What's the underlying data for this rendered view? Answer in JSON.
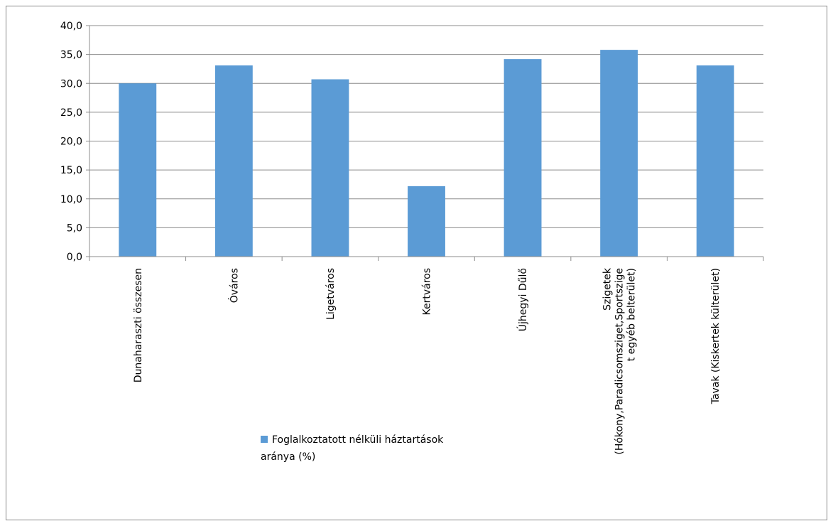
{
  "chart_data": {
    "type": "bar",
    "title": "",
    "xlabel": "",
    "ylabel": "",
    "ylim": [
      0,
      40
    ],
    "y_ticks": [
      "0,0",
      "5,0",
      "10,0",
      "15,0",
      "20,0",
      "25,0",
      "30,0",
      "35,0",
      "40,0"
    ],
    "grid": true,
    "legend_position": "bottom",
    "bar_color": "#5b9bd5",
    "categories": [
      [
        "Dunaharaszti összesen"
      ],
      [
        "Óváros"
      ],
      [
        "Ligetváros"
      ],
      [
        "Kertváros"
      ],
      [
        "Újhegyi Dűlő"
      ],
      [
        "Szigetek",
        "(Hókony,Paradicsomsziget,Sportszige",
        "t egyéb belterület)"
      ],
      [
        "Tavak (Kiskertek külterület)"
      ]
    ],
    "series": [
      {
        "name": "Foglalkoztatott nélküli háztartások aránya (%)",
        "values": [
          30.0,
          33.1,
          30.7,
          12.2,
          34.2,
          35.8,
          33.1
        ]
      }
    ]
  },
  "legend": {
    "line1": "Foglalkoztatott nélküli háztartások",
    "line2": "aránya (%)"
  }
}
